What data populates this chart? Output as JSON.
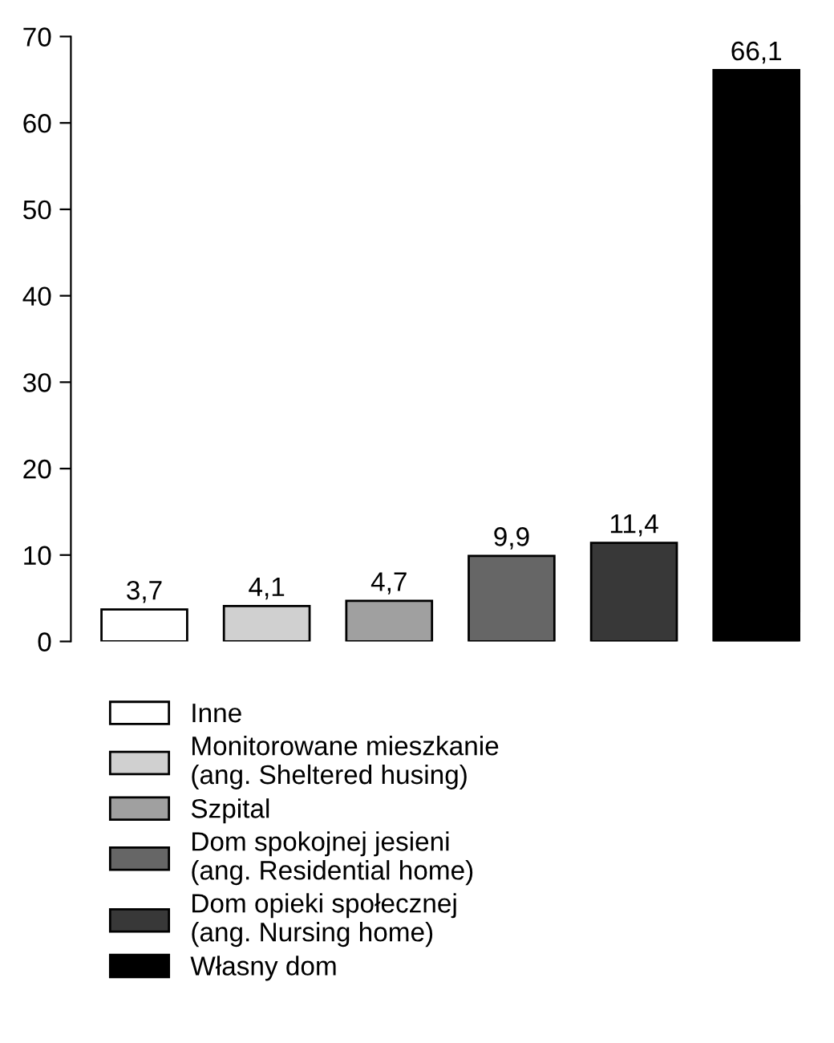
{
  "chart_data": {
    "type": "bar",
    "stacked": true,
    "categories": [
      null,
      null,
      null,
      null,
      null,
      null
    ],
    "series": [
      {
        "name": "Inne",
        "color": "#ffffff",
        "values": [
          3.7,
          null,
          null,
          null,
          null,
          null
        ],
        "value_labels": [
          "3,7",
          null,
          null,
          null,
          null,
          null
        ]
      },
      {
        "name": "Monitorowane mieszkanie\n(ang. Sheltered husing)",
        "color": "#d0d0d0",
        "values": [
          null,
          4.1,
          null,
          null,
          null,
          null
        ],
        "value_labels": [
          null,
          "4,1",
          null,
          null,
          null,
          null
        ]
      },
      {
        "name": "Szpital",
        "color": "#a0a0a0",
        "values": [
          null,
          null,
          4.7,
          null,
          null,
          null
        ],
        "value_labels": [
          null,
          null,
          "4,7",
          null,
          null,
          null
        ]
      },
      {
        "name": "Dom spokojnej jesieni\n(ang. Residential home)",
        "color": "#666666",
        "values": [
          null,
          null,
          null,
          9.9,
          null,
          null
        ],
        "value_labels": [
          null,
          null,
          null,
          "9,9",
          null,
          null
        ]
      },
      {
        "name": "Dom opieki społecznej\n(ang. Nursing home)",
        "color": "#383838",
        "values": [
          null,
          null,
          null,
          null,
          11.4,
          null
        ],
        "value_labels": [
          null,
          null,
          null,
          null,
          "11,4",
          null
        ]
      },
      {
        "name": "Własny dom",
        "color": "#000000",
        "values": [
          null,
          null,
          null,
          null,
          null,
          66.1
        ],
        "value_labels": [
          null,
          null,
          null,
          null,
          null,
          "66,1"
        ]
      }
    ],
    "ylim": [
      0,
      70
    ],
    "yticks": [
      0,
      10,
      20,
      30,
      40,
      50,
      60,
      70
    ],
    "grid": false,
    "legend": "bottom",
    "tick_labels": "y"
  }
}
